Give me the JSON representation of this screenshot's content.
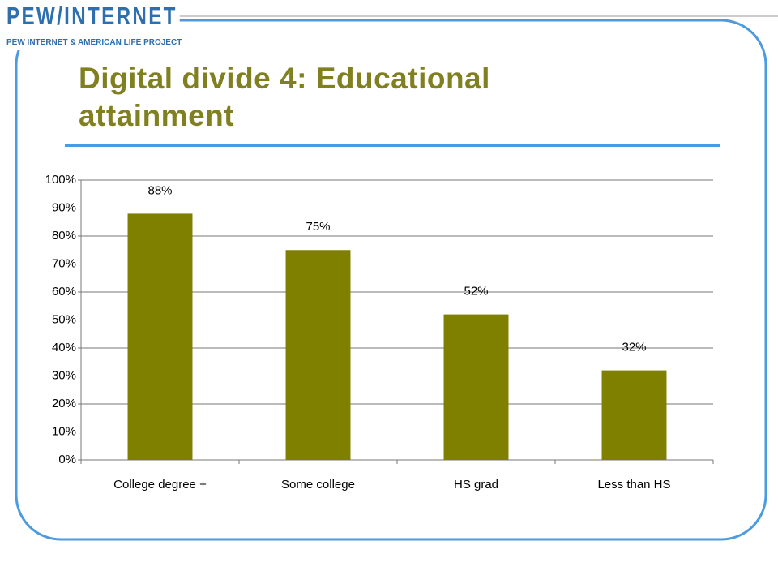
{
  "logo": {
    "name": "PEW/INTERNET",
    "subtitle": "PEW INTERNET & AMERICAN LIFE PROJECT"
  },
  "chart_data": {
    "type": "bar",
    "title": "Digital divide 4: Educational attainment",
    "categories": [
      "College degree +",
      "Some college",
      "HS grad",
      "Less than HS"
    ],
    "values": [
      88,
      75,
      52,
      32
    ],
    "value_labels": [
      "88%",
      "75%",
      "52%",
      "32%"
    ],
    "color": "#808000",
    "ylim": [
      0,
      100
    ],
    "yticks": [
      {
        "value": 0,
        "label": "0%"
      },
      {
        "value": 10,
        "label": "10%"
      },
      {
        "value": 20,
        "label": "20%"
      },
      {
        "value": 30,
        "label": "30%"
      },
      {
        "value": 40,
        "label": "40%"
      },
      {
        "value": 50,
        "label": "50%"
      },
      {
        "value": 60,
        "label": "60%"
      },
      {
        "value": 70,
        "label": "70%"
      },
      {
        "value": 80,
        "label": "80%"
      },
      {
        "value": 90,
        "label": "90%"
      },
      {
        "value": 100,
        "label": "100%"
      }
    ],
    "grid": true
  }
}
